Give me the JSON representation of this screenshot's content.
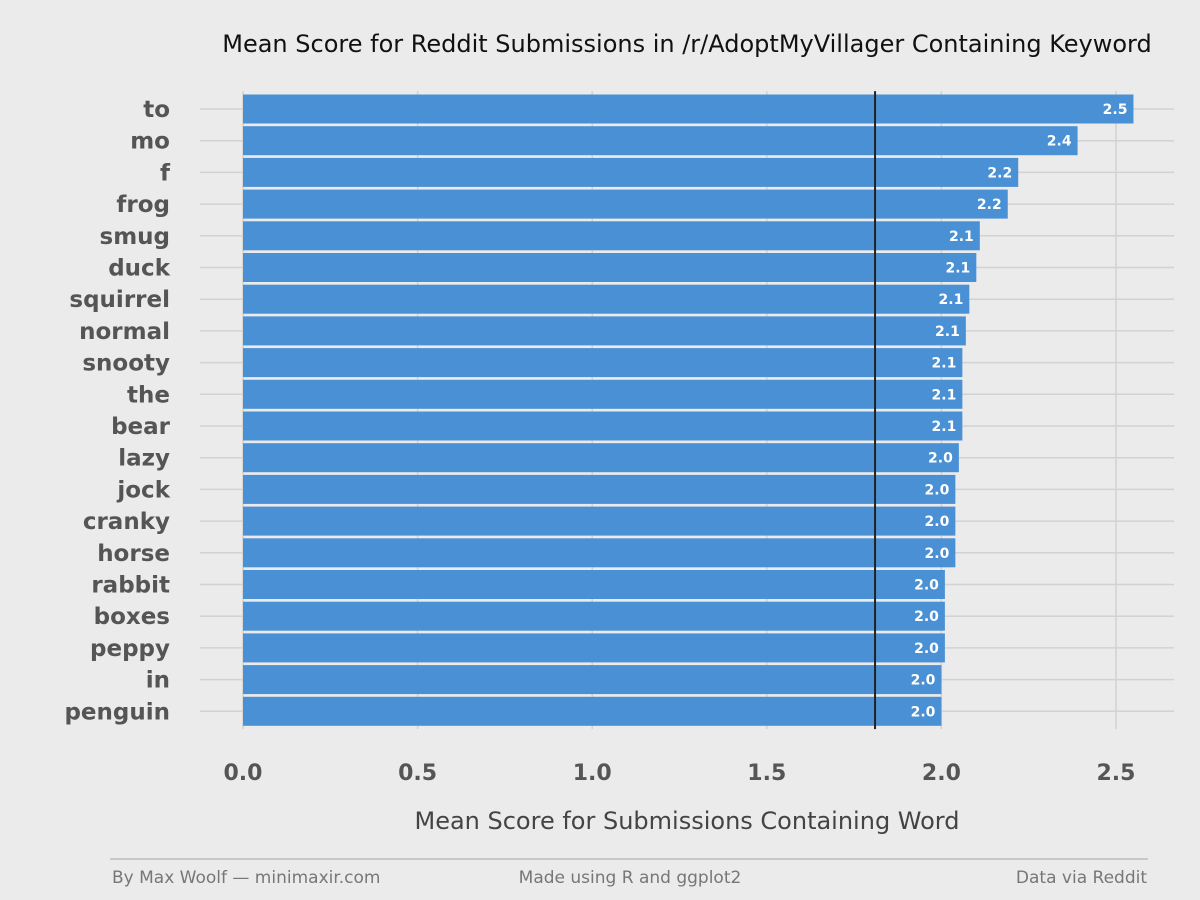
{
  "chart_data": {
    "type": "bar",
    "orientation": "horizontal",
    "title": "Mean Score for Reddit Submissions in /r/AdoptMyVillager Containing Keyword",
    "xlabel": "Mean Score for Submissions Containing Word",
    "ylabel": "",
    "categories": [
      "to",
      "mo",
      "f",
      "frog",
      "smug",
      "duck",
      "squirrel",
      "normal",
      "snooty",
      "the",
      "bear",
      "lazy",
      "jock",
      "cranky",
      "horse",
      "rabbit",
      "boxes",
      "peppy",
      "in",
      "penguin"
    ],
    "values": [
      2.55,
      2.39,
      2.22,
      2.19,
      2.11,
      2.1,
      2.08,
      2.07,
      2.06,
      2.06,
      2.06,
      2.05,
      2.04,
      2.04,
      2.04,
      2.01,
      2.01,
      2.01,
      2.0,
      2.0
    ],
    "value_labels": [
      "2.5",
      "2.4",
      "2.2",
      "2.2",
      "2.1",
      "2.1",
      "2.1",
      "2.1",
      "2.1",
      "2.1",
      "2.1",
      "2.0",
      "2.0",
      "2.0",
      "2.0",
      "2.0",
      "2.0",
      "2.0",
      "2.0",
      "2.0"
    ],
    "xlim": [
      0,
      2.62
    ],
    "x_ticks": [
      0.0,
      0.5,
      1.0,
      1.5,
      2.0,
      2.5
    ],
    "x_tick_labels": [
      "0.0",
      "0.5",
      "1.0",
      "1.5",
      "2.0",
      "2.5"
    ],
    "reference_line": 1.81,
    "grid": true,
    "colors": {
      "bar": "#4a90d4",
      "background": "#ebebeb",
      "grid": "#d2d2d2",
      "reference_line": "#222222"
    }
  },
  "footer": {
    "left": "By Max Woolf — minimaxir.com",
    "center": "Made using R and ggplot2",
    "right": "Data via Reddit"
  }
}
